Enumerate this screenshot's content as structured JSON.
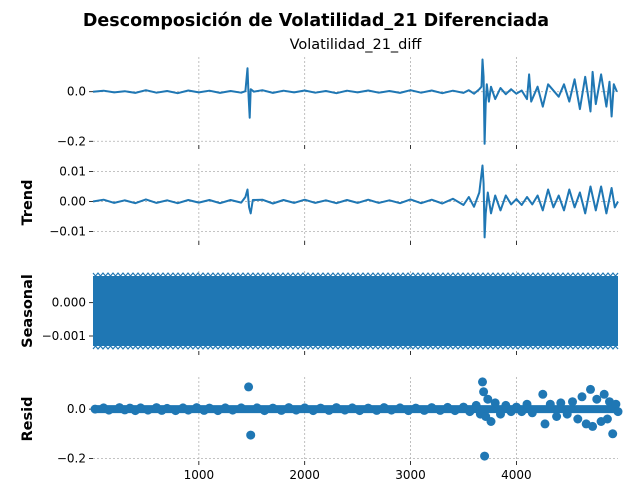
{
  "chart_data": {
    "type": "line",
    "title": "Descomposición de Volatilidad_21 Diferenciada",
    "xlim": [
      0,
      4960
    ],
    "x_ticks": [
      1000,
      2000,
      3000,
      4000
    ],
    "x_tick_labels": [
      "1000",
      "2000",
      "3000",
      "4000"
    ],
    "grid": true,
    "color": "#1f77b4",
    "panels": [
      {
        "name": "observed",
        "title": "Volatilidad_21_diff",
        "ylabel": "",
        "kind": "line",
        "ylim": [
          -0.215,
          0.14
        ],
        "y_ticks": [
          0.0,
          -0.2
        ],
        "y_tick_labels": [
          "0.0",
          "−0.2"
        ],
        "values": [
          [
            0,
            0.0
          ],
          [
            100,
            0.004
          ],
          [
            200,
            -0.003
          ],
          [
            300,
            0.002
          ],
          [
            400,
            -0.005
          ],
          [
            500,
            0.006
          ],
          [
            600,
            -0.004
          ],
          [
            700,
            0.003
          ],
          [
            800,
            -0.006
          ],
          [
            900,
            0.005
          ],
          [
            1000,
            -0.003
          ],
          [
            1100,
            0.004
          ],
          [
            1200,
            -0.005
          ],
          [
            1300,
            0.003
          ],
          [
            1400,
            -0.004
          ],
          [
            1440,
            0.002
          ],
          [
            1460,
            0.095
          ],
          [
            1470,
            -0.02
          ],
          [
            1480,
            -0.105
          ],
          [
            1490,
            0.01
          ],
          [
            1520,
            0.0
          ],
          [
            1600,
            0.006
          ],
          [
            1700,
            -0.005
          ],
          [
            1800,
            0.004
          ],
          [
            1900,
            -0.003
          ],
          [
            2000,
            0.005
          ],
          [
            2100,
            -0.004
          ],
          [
            2200,
            0.003
          ],
          [
            2300,
            -0.006
          ],
          [
            2400,
            0.004
          ],
          [
            2500,
            -0.003
          ],
          [
            2600,
            0.005
          ],
          [
            2700,
            -0.004
          ],
          [
            2800,
            0.003
          ],
          [
            2900,
            -0.005
          ],
          [
            3000,
            0.006
          ],
          [
            3100,
            -0.004
          ],
          [
            3200,
            0.005
          ],
          [
            3300,
            -0.006
          ],
          [
            3400,
            0.004
          ],
          [
            3500,
            -0.005
          ],
          [
            3550,
            0.006
          ],
          [
            3600,
            -0.008
          ],
          [
            3650,
            0.01
          ],
          [
            3670,
            0.02
          ],
          [
            3680,
            0.13
          ],
          [
            3690,
            0.06
          ],
          [
            3700,
            -0.21
          ],
          [
            3710,
            -0.05
          ],
          [
            3720,
            0.03
          ],
          [
            3740,
            -0.04
          ],
          [
            3760,
            0.02
          ],
          [
            3800,
            -0.03
          ],
          [
            3850,
            0.015
          ],
          [
            3900,
            -0.01
          ],
          [
            3950,
            0.01
          ],
          [
            4000,
            -0.008
          ],
          [
            4050,
            0.005
          ],
          [
            4100,
            -0.03
          ],
          [
            4120,
            0.07
          ],
          [
            4140,
            -0.04
          ],
          [
            4200,
            0.02
          ],
          [
            4250,
            -0.06
          ],
          [
            4300,
            0.03
          ],
          [
            4400,
            -0.02
          ],
          [
            4450,
            0.03
          ],
          [
            4500,
            -0.04
          ],
          [
            4550,
            0.05
          ],
          [
            4600,
            -0.07
          ],
          [
            4650,
            0.06
          ],
          [
            4700,
            -0.08
          ],
          [
            4720,
            0.08
          ],
          [
            4750,
            -0.05
          ],
          [
            4800,
            0.07
          ],
          [
            4850,
            -0.06
          ],
          [
            4880,
            0.04
          ],
          [
            4900,
            -0.1
          ],
          [
            4920,
            0.03
          ],
          [
            4950,
            0.0
          ]
        ]
      },
      {
        "name": "trend",
        "title": "",
        "ylabel": "Trend",
        "kind": "line",
        "ylim": [
          -0.0132,
          0.0125
        ],
        "y_ticks": [
          0.01,
          0.0,
          -0.01
        ],
        "y_tick_labels": [
          "0.01",
          "0.00",
          "−0.01"
        ],
        "values": [
          [
            0,
            0.0
          ],
          [
            100,
            0.0006
          ],
          [
            200,
            -0.0005
          ],
          [
            300,
            0.0004
          ],
          [
            400,
            -0.0006
          ],
          [
            500,
            0.0007
          ],
          [
            600,
            -0.0005
          ],
          [
            700,
            0.0004
          ],
          [
            800,
            -0.0006
          ],
          [
            900,
            0.0005
          ],
          [
            1000,
            -0.0004
          ],
          [
            1100,
            0.0005
          ],
          [
            1200,
            -0.0006
          ],
          [
            1300,
            0.0005
          ],
          [
            1400,
            -0.0004
          ],
          [
            1440,
            0.0015
          ],
          [
            1460,
            0.004
          ],
          [
            1475,
            -0.002
          ],
          [
            1490,
            -0.004
          ],
          [
            1510,
            0.0005
          ],
          [
            1600,
            0.0006
          ],
          [
            1700,
            -0.0007
          ],
          [
            1800,
            0.0005
          ],
          [
            1900,
            -0.0005
          ],
          [
            2000,
            0.0006
          ],
          [
            2100,
            -0.0005
          ],
          [
            2200,
            0.0004
          ],
          [
            2300,
            -0.0006
          ],
          [
            2400,
            0.0005
          ],
          [
            2500,
            -0.0005
          ],
          [
            2600,
            0.0006
          ],
          [
            2700,
            -0.0005
          ],
          [
            2800,
            0.0004
          ],
          [
            2900,
            -0.0006
          ],
          [
            3000,
            0.0007
          ],
          [
            3100,
            -0.0006
          ],
          [
            3200,
            0.0006
          ],
          [
            3300,
            -0.0007
          ],
          [
            3400,
            0.0009
          ],
          [
            3500,
            -0.0012
          ],
          [
            3550,
            0.0015
          ],
          [
            3600,
            -0.0018
          ],
          [
            3650,
            0.003
          ],
          [
            3680,
            0.012
          ],
          [
            3690,
            0.006
          ],
          [
            3700,
            -0.012
          ],
          [
            3710,
            -0.004
          ],
          [
            3730,
            0.003
          ],
          [
            3760,
            -0.004
          ],
          [
            3800,
            0.002
          ],
          [
            3850,
            -0.003
          ],
          [
            3900,
            0.002
          ],
          [
            3950,
            -0.001
          ],
          [
            4000,
            0.0008
          ],
          [
            4050,
            -0.0012
          ],
          [
            4100,
            0.0015
          ],
          [
            4150,
            -0.001
          ],
          [
            4200,
            0.002
          ],
          [
            4250,
            -0.003
          ],
          [
            4300,
            0.004
          ],
          [
            4350,
            -0.002
          ],
          [
            4400,
            0.002
          ],
          [
            4450,
            -0.003
          ],
          [
            4500,
            0.004
          ],
          [
            4550,
            -0.002
          ],
          [
            4600,
            0.003
          ],
          [
            4650,
            -0.004
          ],
          [
            4700,
            0.005
          ],
          [
            4750,
            -0.003
          ],
          [
            4800,
            0.005
          ],
          [
            4850,
            -0.004
          ],
          [
            4900,
            0.0045
          ],
          [
            4930,
            -0.002
          ],
          [
            4960,
            0.0
          ]
        ]
      },
      {
        "name": "seasonal",
        "title": "",
        "ylabel": "Seasonal",
        "kind": "band",
        "ylim": [
          -0.00145,
          0.00095
        ],
        "y_ticks": [
          0.0,
          -0.001
        ],
        "y_tick_labels": [
          "0.000",
          "−0.001"
        ],
        "band": [
          -0.0013,
          0.0008
        ]
      },
      {
        "name": "resid",
        "title": "",
        "ylabel": "Resid",
        "kind": "scatter",
        "ylim": [
          -0.21,
          0.13
        ],
        "y_ticks": [
          0.0,
          -0.2
        ],
        "y_tick_labels": [
          "0.0",
          "−0.2"
        ],
        "values": [
          [
            20,
            0.0
          ],
          [
            100,
            0.005
          ],
          [
            150,
            -0.004
          ],
          [
            250,
            0.006
          ],
          [
            300,
            -0.003
          ],
          [
            350,
            0.004
          ],
          [
            400,
            -0.006
          ],
          [
            450,
            0.005
          ],
          [
            520,
            -0.004
          ],
          [
            600,
            0.006
          ],
          [
            650,
            -0.005
          ],
          [
            700,
            0.003
          ],
          [
            780,
            -0.006
          ],
          [
            850,
            0.005
          ],
          [
            900,
            -0.004
          ],
          [
            980,
            0.006
          ],
          [
            1050,
            -0.005
          ],
          [
            1100,
            0.004
          ],
          [
            1180,
            -0.006
          ],
          [
            1250,
            0.005
          ],
          [
            1320,
            -0.004
          ],
          [
            1400,
            0.005
          ],
          [
            1470,
            0.09
          ],
          [
            1490,
            -0.105
          ],
          [
            1550,
            0.005
          ],
          [
            1620,
            -0.006
          ],
          [
            1700,
            0.004
          ],
          [
            1780,
            -0.005
          ],
          [
            1850,
            0.006
          ],
          [
            1920,
            -0.004
          ],
          [
            2000,
            0.005
          ],
          [
            2080,
            -0.006
          ],
          [
            2150,
            0.004
          ],
          [
            2230,
            -0.005
          ],
          [
            2300,
            0.006
          ],
          [
            2380,
            -0.004
          ],
          [
            2450,
            0.005
          ],
          [
            2520,
            -0.006
          ],
          [
            2600,
            0.004
          ],
          [
            2680,
            -0.005
          ],
          [
            2750,
            0.006
          ],
          [
            2820,
            -0.004
          ],
          [
            2900,
            0.005
          ],
          [
            2980,
            -0.006
          ],
          [
            3050,
            0.004
          ],
          [
            3130,
            -0.005
          ],
          [
            3200,
            0.006
          ],
          [
            3280,
            -0.005
          ],
          [
            3350,
            0.007
          ],
          [
            3420,
            -0.006
          ],
          [
            3500,
            0.008
          ],
          [
            3560,
            -0.01
          ],
          [
            3620,
            0.015
          ],
          [
            3660,
            -0.02
          ],
          [
            3680,
            0.11
          ],
          [
            3690,
            0.07
          ],
          [
            3700,
            -0.19
          ],
          [
            3710,
            -0.03
          ],
          [
            3730,
            0.04
          ],
          [
            3760,
            -0.05
          ],
          [
            3800,
            0.025
          ],
          [
            3850,
            -0.02
          ],
          [
            3900,
            0.015
          ],
          [
            3950,
            -0.01
          ],
          [
            4000,
            0.008
          ],
          [
            4050,
            -0.01
          ],
          [
            4100,
            0.02
          ],
          [
            4150,
            -0.015
          ],
          [
            4250,
            0.06
          ],
          [
            4270,
            -0.06
          ],
          [
            4320,
            0.02
          ],
          [
            4380,
            -0.03
          ],
          [
            4420,
            0.025
          ],
          [
            4480,
            -0.02
          ],
          [
            4530,
            0.03
          ],
          [
            4580,
            -0.04
          ],
          [
            4620,
            0.05
          ],
          [
            4660,
            -0.06
          ],
          [
            4700,
            0.08
          ],
          [
            4720,
            -0.07
          ],
          [
            4760,
            0.04
          ],
          [
            4800,
            -0.05
          ],
          [
            4830,
            0.06
          ],
          [
            4860,
            -0.04
          ],
          [
            4880,
            0.03
          ],
          [
            4910,
            -0.1
          ],
          [
            4940,
            0.02
          ],
          [
            4960,
            -0.01
          ]
        ]
      }
    ]
  }
}
